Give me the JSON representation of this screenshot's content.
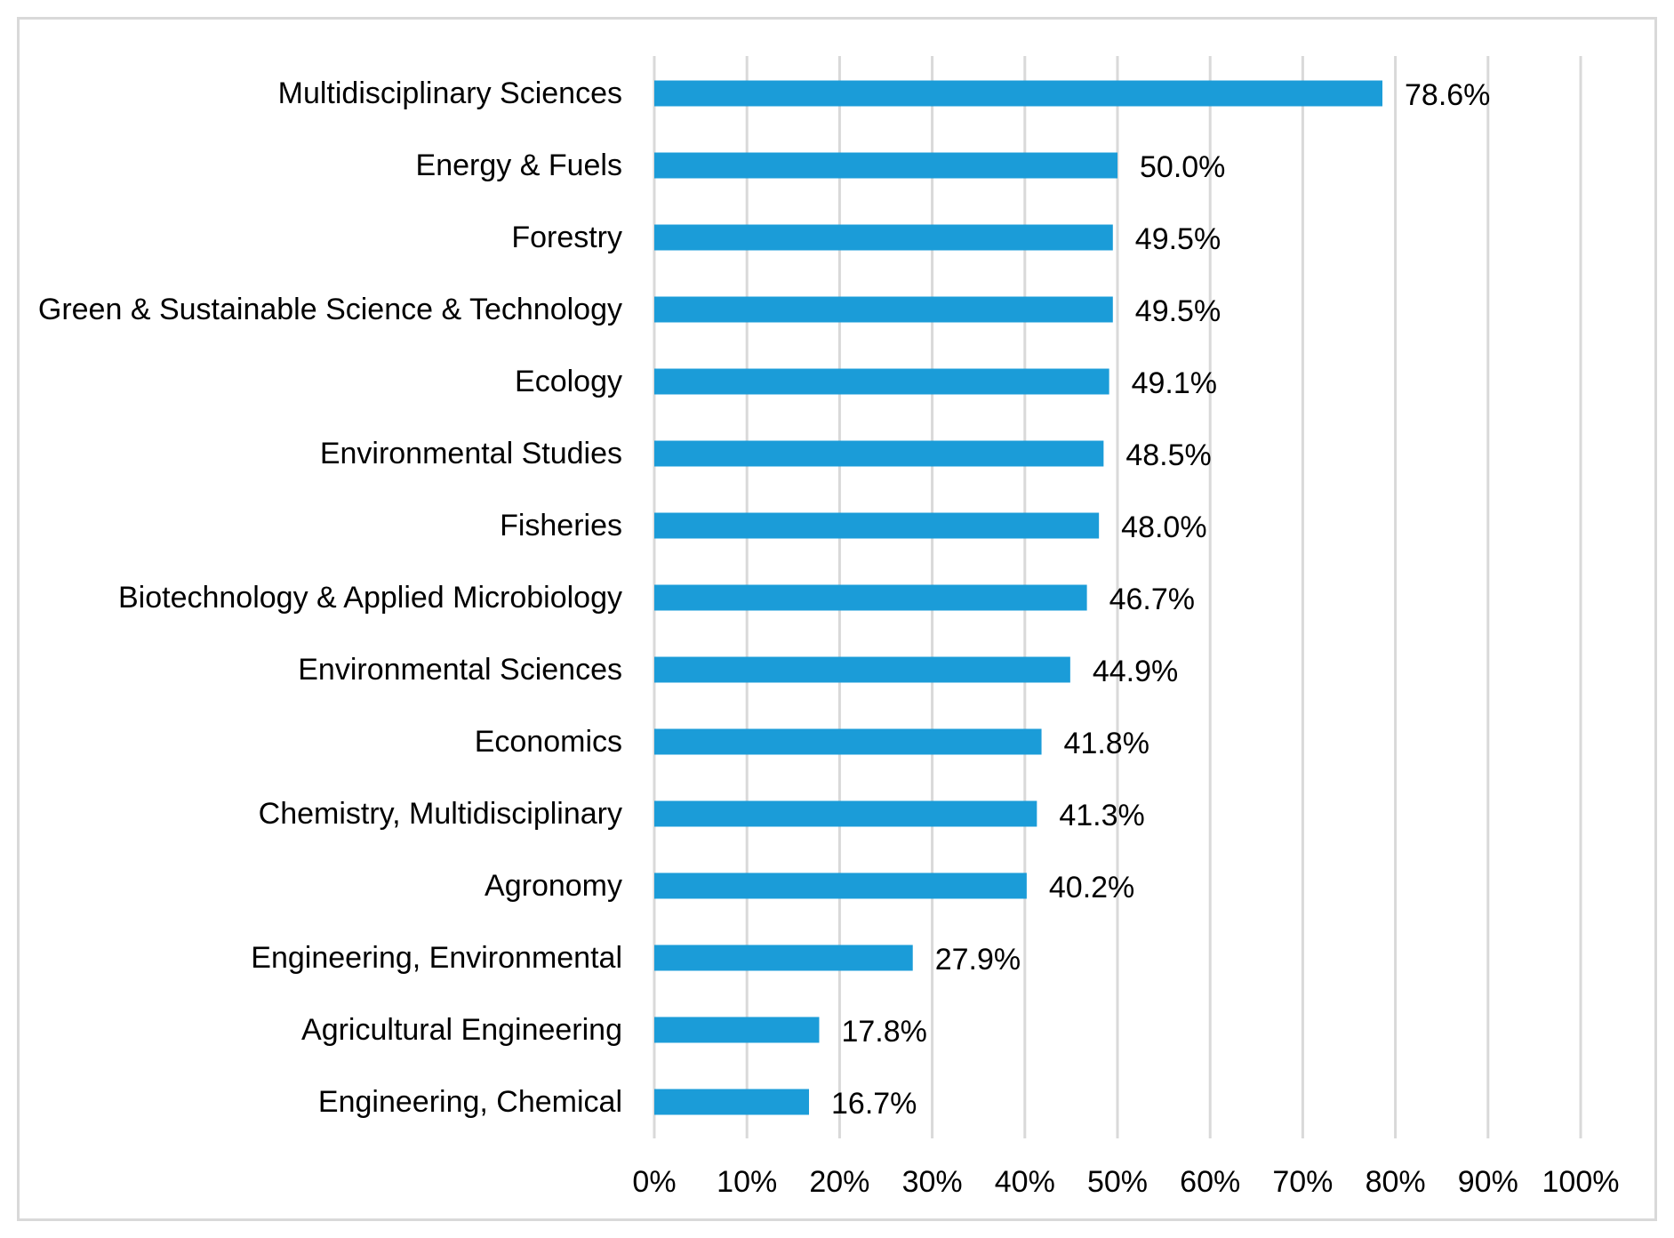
{
  "chart_data": {
    "type": "bar",
    "orientation": "horizontal",
    "title": "",
    "xlabel": "",
    "ylabel": "",
    "grid": true,
    "legend": "none",
    "xlim": [
      0,
      100
    ],
    "bar_color": "#1b9cd8",
    "grid_color": "#d9d9d9",
    "ticks": [
      "0%",
      "10%",
      "20%",
      "30%",
      "40%",
      "50%",
      "60%",
      "70%",
      "80%",
      "90%",
      "100%"
    ],
    "categories": [
      "Multidisciplinary Sciences",
      "Energy & Fuels",
      "Forestry",
      "Green & Sustainable Science & Technology",
      "Ecology",
      "Environmental Studies",
      "Fisheries",
      "Biotechnology & Applied Microbiology",
      "Environmental Sciences",
      "Economics",
      "Chemistry, Multidisciplinary",
      "Agronomy",
      "Engineering, Environmental",
      "Agricultural Engineering",
      "Engineering, Chemical"
    ],
    "values": [
      78.6,
      50.0,
      49.5,
      49.5,
      49.1,
      48.5,
      48.0,
      46.7,
      44.9,
      41.8,
      41.3,
      40.2,
      27.9,
      17.8,
      16.7
    ],
    "data_labels": [
      "78.6%",
      "50.0%",
      "49.5%",
      "49.5%",
      "49.1%",
      "48.5%",
      "48.0%",
      "46.7%",
      "44.9%",
      "41.8%",
      "41.3%",
      "40.2%",
      "27.9%",
      "17.8%",
      "16.7%"
    ]
  }
}
